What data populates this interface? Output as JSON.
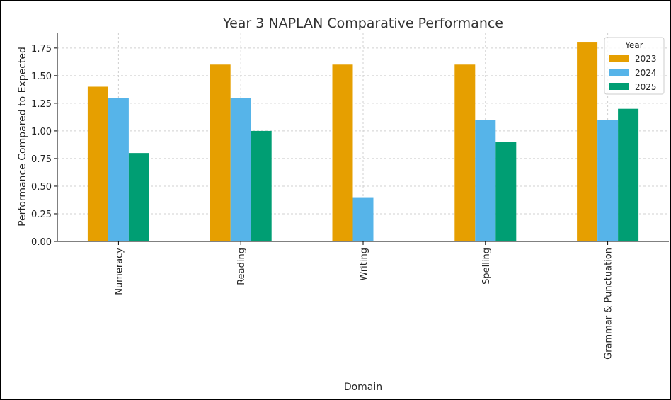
{
  "chart_data": {
    "type": "bar",
    "title": "Year 3 NAPLAN Comparative Performance",
    "xlabel": "Domain",
    "ylabel": "Performance Compared to Expected",
    "categories": [
      "Numeracy",
      "Reading",
      "Writing",
      "Spelling",
      "Grammar & Punctuation"
    ],
    "series": [
      {
        "name": "2023",
        "color": "#E69F00",
        "values": [
          1.4,
          1.6,
          1.6,
          1.6,
          1.8
        ]
      },
      {
        "name": "2024",
        "color": "#56B4E9",
        "values": [
          1.3,
          1.3,
          0.4,
          1.1,
          1.1
        ]
      },
      {
        "name": "2025",
        "color": "#009E73",
        "values": [
          0.8,
          1.0,
          null,
          0.9,
          1.2
        ]
      }
    ],
    "yticks": [
      "0.00",
      "0.25",
      "0.50",
      "0.75",
      "1.00",
      "1.25",
      "1.50",
      "1.75"
    ],
    "ylim": [
      0,
      1.89
    ],
    "grid": true,
    "legend": {
      "title": "Year",
      "placement": "top-right"
    }
  }
}
